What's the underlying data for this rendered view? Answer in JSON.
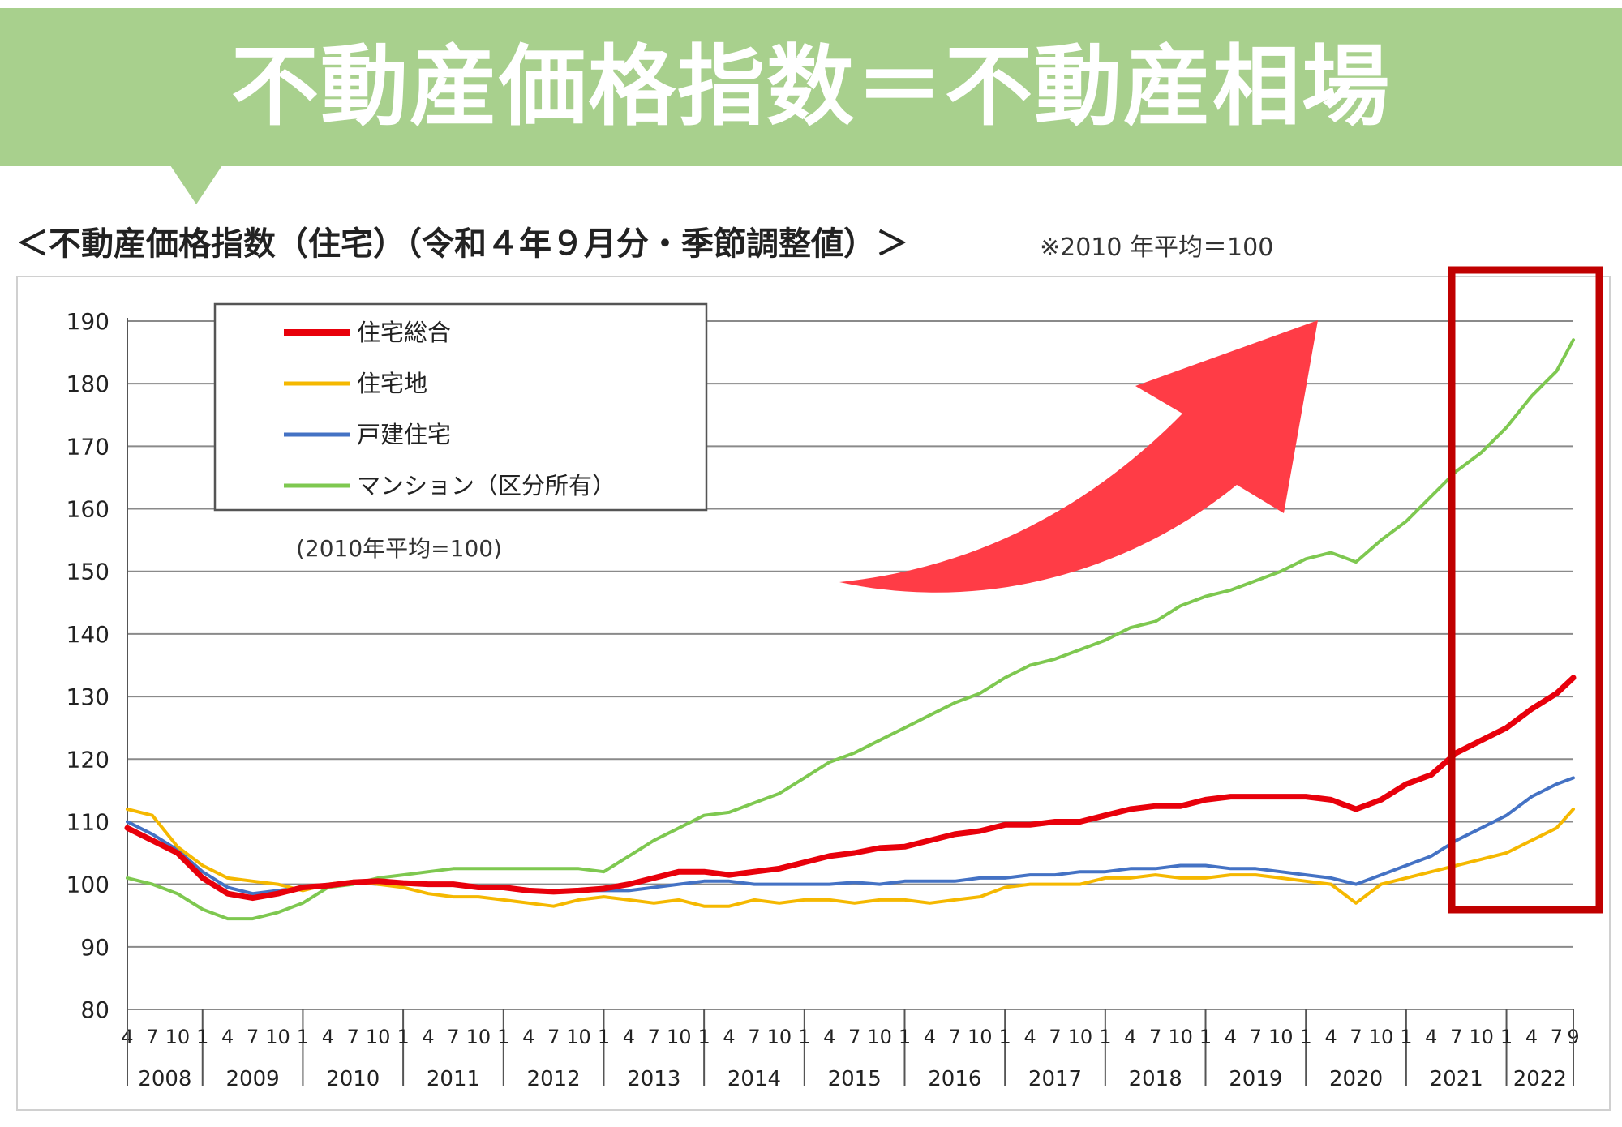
{
  "header": {
    "title": "不動産価格指数＝不動産相場"
  },
  "chart_heading": "＜不動産価格指数（住宅）（令和４年９月分・季節調整値）＞",
  "chart_note": "※2010 年平均＝100",
  "colors": {
    "banner": "#a8d08d",
    "highlight_box": "#c00000",
    "arrow": "#ff3c46"
  },
  "chart_data": {
    "type": "line",
    "title": "",
    "xlabel": "",
    "ylabel": "",
    "ylim": [
      80,
      190
    ],
    "y_ticks": [
      80,
      90,
      100,
      110,
      120,
      130,
      140,
      150,
      160,
      170,
      180,
      190
    ],
    "years": [
      "2008",
      "2009",
      "2010",
      "2011",
      "2012",
      "2013",
      "2014",
      "2015",
      "2016",
      "2017",
      "2018",
      "2019",
      "2020",
      "2021",
      "2022"
    ],
    "month_ticks": [
      "1",
      "4",
      "7",
      "10"
    ],
    "last_year_month_ticks": [
      "1",
      "4",
      "7",
      "9"
    ],
    "first_year_month_ticks": [
      "4",
      "7",
      "10"
    ],
    "x_start": "2008-04",
    "x_end": "2022-09",
    "base_note": "(2010年平均=100)",
    "legend_position": "top-left",
    "grid": true,
    "series": [
      {
        "name": "住宅総合",
        "color": "#e8000b",
        "points": [
          [
            "2008-04",
            109
          ],
          [
            "2008-07",
            107
          ],
          [
            "2008-10",
            105
          ],
          [
            "2009-01",
            101
          ],
          [
            "2009-04",
            98.5
          ],
          [
            "2009-07",
            97.8
          ],
          [
            "2009-10",
            98.5
          ],
          [
            "2010-01",
            99.5
          ],
          [
            "2010-04",
            99.8
          ],
          [
            "2010-07",
            100.3
          ],
          [
            "2010-10",
            100.5
          ],
          [
            "2011-01",
            100.2
          ],
          [
            "2011-04",
            100
          ],
          [
            "2011-07",
            100
          ],
          [
            "2011-10",
            99.5
          ],
          [
            "2012-01",
            99.5
          ],
          [
            "2012-04",
            99
          ],
          [
            "2012-07",
            98.8
          ],
          [
            "2012-10",
            99
          ],
          [
            "2013-01",
            99.3
          ],
          [
            "2013-04",
            100
          ],
          [
            "2013-07",
            101
          ],
          [
            "2013-10",
            102
          ],
          [
            "2014-01",
            102
          ],
          [
            "2014-04",
            101.5
          ],
          [
            "2014-07",
            102
          ],
          [
            "2014-10",
            102.5
          ],
          [
            "2015-01",
            103.5
          ],
          [
            "2015-04",
            104.5
          ],
          [
            "2015-07",
            105
          ],
          [
            "2015-10",
            105.8
          ],
          [
            "2016-01",
            106
          ],
          [
            "2016-04",
            107
          ],
          [
            "2016-07",
            108
          ],
          [
            "2016-10",
            108.5
          ],
          [
            "2017-01",
            109.5
          ],
          [
            "2017-04",
            109.5
          ],
          [
            "2017-07",
            110
          ],
          [
            "2017-10",
            110
          ],
          [
            "2018-01",
            111
          ],
          [
            "2018-04",
            112
          ],
          [
            "2018-07",
            112.5
          ],
          [
            "2018-10",
            112.5
          ],
          [
            "2019-01",
            113.5
          ],
          [
            "2019-04",
            114
          ],
          [
            "2019-07",
            114
          ],
          [
            "2019-10",
            114
          ],
          [
            "2020-01",
            114
          ],
          [
            "2020-04",
            113.5
          ],
          [
            "2020-07",
            112
          ],
          [
            "2020-10",
            113.5
          ],
          [
            "2021-01",
            116
          ],
          [
            "2021-04",
            117.5
          ],
          [
            "2021-07",
            121
          ],
          [
            "2021-10",
            123
          ],
          [
            "2022-01",
            125
          ],
          [
            "2022-04",
            128
          ],
          [
            "2022-07",
            130.5
          ],
          [
            "2022-09",
            133
          ]
        ]
      },
      {
        "name": "住宅地",
        "color": "#f5b800",
        "points": [
          [
            "2008-04",
            112
          ],
          [
            "2008-07",
            111
          ],
          [
            "2008-10",
            106
          ],
          [
            "2009-01",
            103
          ],
          [
            "2009-04",
            101
          ],
          [
            "2009-07",
            100.5
          ],
          [
            "2009-10",
            100
          ],
          [
            "2010-01",
            99
          ],
          [
            "2010-04",
            100
          ],
          [
            "2010-07",
            100.5
          ],
          [
            "2010-10",
            100
          ],
          [
            "2011-01",
            99.5
          ],
          [
            "2011-04",
            98.5
          ],
          [
            "2011-07",
            98
          ],
          [
            "2011-10",
            98
          ],
          [
            "2012-01",
            97.5
          ],
          [
            "2012-04",
            97
          ],
          [
            "2012-07",
            96.5
          ],
          [
            "2012-10",
            97.5
          ],
          [
            "2013-01",
            98
          ],
          [
            "2013-04",
            97.5
          ],
          [
            "2013-07",
            97
          ],
          [
            "2013-10",
            97.5
          ],
          [
            "2014-01",
            96.5
          ],
          [
            "2014-04",
            96.5
          ],
          [
            "2014-07",
            97.5
          ],
          [
            "2014-10",
            97
          ],
          [
            "2015-01",
            97.5
          ],
          [
            "2015-04",
            97.5
          ],
          [
            "2015-07",
            97
          ],
          [
            "2015-10",
            97.5
          ],
          [
            "2016-01",
            97.5
          ],
          [
            "2016-04",
            97
          ],
          [
            "2016-07",
            97.5
          ],
          [
            "2016-10",
            98
          ],
          [
            "2017-01",
            99.5
          ],
          [
            "2017-04",
            100
          ],
          [
            "2017-07",
            100
          ],
          [
            "2017-10",
            100
          ],
          [
            "2018-01",
            101
          ],
          [
            "2018-04",
            101
          ],
          [
            "2018-07",
            101.5
          ],
          [
            "2018-10",
            101
          ],
          [
            "2019-01",
            101
          ],
          [
            "2019-04",
            101.5
          ],
          [
            "2019-07",
            101.5
          ],
          [
            "2019-10",
            101
          ],
          [
            "2020-01",
            100.5
          ],
          [
            "2020-04",
            100
          ],
          [
            "2020-07",
            97
          ],
          [
            "2020-10",
            100
          ],
          [
            "2021-01",
            101
          ],
          [
            "2021-04",
            102
          ],
          [
            "2021-07",
            103
          ],
          [
            "2021-10",
            104
          ],
          [
            "2022-01",
            105
          ],
          [
            "2022-04",
            107
          ],
          [
            "2022-07",
            109
          ],
          [
            "2022-09",
            112
          ]
        ]
      },
      {
        "name": "戸建住宅",
        "color": "#4472c4",
        "points": [
          [
            "2008-04",
            110
          ],
          [
            "2008-07",
            108
          ],
          [
            "2008-10",
            105.5
          ],
          [
            "2009-01",
            102
          ],
          [
            "2009-04",
            99.5
          ],
          [
            "2009-07",
            98.5
          ],
          [
            "2009-10",
            99
          ],
          [
            "2010-01",
            99.5
          ],
          [
            "2010-04",
            100
          ],
          [
            "2010-07",
            100.3
          ],
          [
            "2010-10",
            100
          ],
          [
            "2011-01",
            100
          ],
          [
            "2011-04",
            100
          ],
          [
            "2011-07",
            100
          ],
          [
            "2011-10",
            99.5
          ],
          [
            "2012-01",
            99.5
          ],
          [
            "2012-04",
            99
          ],
          [
            "2012-07",
            99
          ],
          [
            "2012-10",
            99
          ],
          [
            "2013-01",
            99
          ],
          [
            "2013-04",
            99
          ],
          [
            "2013-07",
            99.5
          ],
          [
            "2013-10",
            100
          ],
          [
            "2014-01",
            100.5
          ],
          [
            "2014-04",
            100.5
          ],
          [
            "2014-07",
            100
          ],
          [
            "2014-10",
            100
          ],
          [
            "2015-01",
            100
          ],
          [
            "2015-04",
            100
          ],
          [
            "2015-07",
            100.3
          ],
          [
            "2015-10",
            100
          ],
          [
            "2016-01",
            100.5
          ],
          [
            "2016-04",
            100.5
          ],
          [
            "2016-07",
            100.5
          ],
          [
            "2016-10",
            101
          ],
          [
            "2017-01",
            101
          ],
          [
            "2017-04",
            101.5
          ],
          [
            "2017-07",
            101.5
          ],
          [
            "2017-10",
            102
          ],
          [
            "2018-01",
            102
          ],
          [
            "2018-04",
            102.5
          ],
          [
            "2018-07",
            102.5
          ],
          [
            "2018-10",
            103
          ],
          [
            "2019-01",
            103
          ],
          [
            "2019-04",
            102.5
          ],
          [
            "2019-07",
            102.5
          ],
          [
            "2019-10",
            102
          ],
          [
            "2020-01",
            101.5
          ],
          [
            "2020-04",
            101
          ],
          [
            "2020-07",
            100
          ],
          [
            "2020-10",
            101.5
          ],
          [
            "2021-01",
            103
          ],
          [
            "2021-04",
            104.5
          ],
          [
            "2021-07",
            107
          ],
          [
            "2021-10",
            109
          ],
          [
            "2022-01",
            111
          ],
          [
            "2022-04",
            114
          ],
          [
            "2022-07",
            116
          ],
          [
            "2022-09",
            117
          ]
        ]
      },
      {
        "name": "マンション（区分所有）",
        "color": "#7ec850",
        "points": [
          [
            "2008-04",
            101
          ],
          [
            "2008-07",
            100
          ],
          [
            "2008-10",
            98.5
          ],
          [
            "2009-01",
            96
          ],
          [
            "2009-04",
            94.5
          ],
          [
            "2009-07",
            94.5
          ],
          [
            "2009-10",
            95.5
          ],
          [
            "2010-01",
            97
          ],
          [
            "2010-04",
            99.5
          ],
          [
            "2010-07",
            100
          ],
          [
            "2010-10",
            101
          ],
          [
            "2011-01",
            101.5
          ],
          [
            "2011-04",
            102
          ],
          [
            "2011-07",
            102.5
          ],
          [
            "2011-10",
            102.5
          ],
          [
            "2012-01",
            102.5
          ],
          [
            "2012-04",
            102.5
          ],
          [
            "2012-07",
            102.5
          ],
          [
            "2012-10",
            102.5
          ],
          [
            "2013-01",
            102
          ],
          [
            "2013-04",
            104.5
          ],
          [
            "2013-07",
            107
          ],
          [
            "2013-10",
            109
          ],
          [
            "2014-01",
            111
          ],
          [
            "2014-04",
            111.5
          ],
          [
            "2014-07",
            113
          ],
          [
            "2014-10",
            114.5
          ],
          [
            "2015-01",
            117
          ],
          [
            "2015-04",
            119.5
          ],
          [
            "2015-07",
            121
          ],
          [
            "2015-10",
            123
          ],
          [
            "2016-01",
            125
          ],
          [
            "2016-04",
            127
          ],
          [
            "2016-07",
            129
          ],
          [
            "2016-10",
            130.5
          ],
          [
            "2017-01",
            133
          ],
          [
            "2017-04",
            135
          ],
          [
            "2017-07",
            136
          ],
          [
            "2017-10",
            137.5
          ],
          [
            "2018-01",
            139
          ],
          [
            "2018-04",
            141
          ],
          [
            "2018-07",
            142
          ],
          [
            "2018-10",
            144.5
          ],
          [
            "2019-01",
            146
          ],
          [
            "2019-04",
            147
          ],
          [
            "2019-07",
            148.5
          ],
          [
            "2019-10",
            150
          ],
          [
            "2020-01",
            152
          ],
          [
            "2020-04",
            153
          ],
          [
            "2020-07",
            151.5
          ],
          [
            "2020-10",
            155
          ],
          [
            "2021-01",
            158
          ],
          [
            "2021-04",
            162
          ],
          [
            "2021-07",
            166
          ],
          [
            "2021-10",
            169
          ],
          [
            "2022-01",
            173
          ],
          [
            "2022-04",
            178
          ],
          [
            "2022-07",
            182
          ],
          [
            "2022-09",
            187
          ]
        ]
      }
    ]
  }
}
